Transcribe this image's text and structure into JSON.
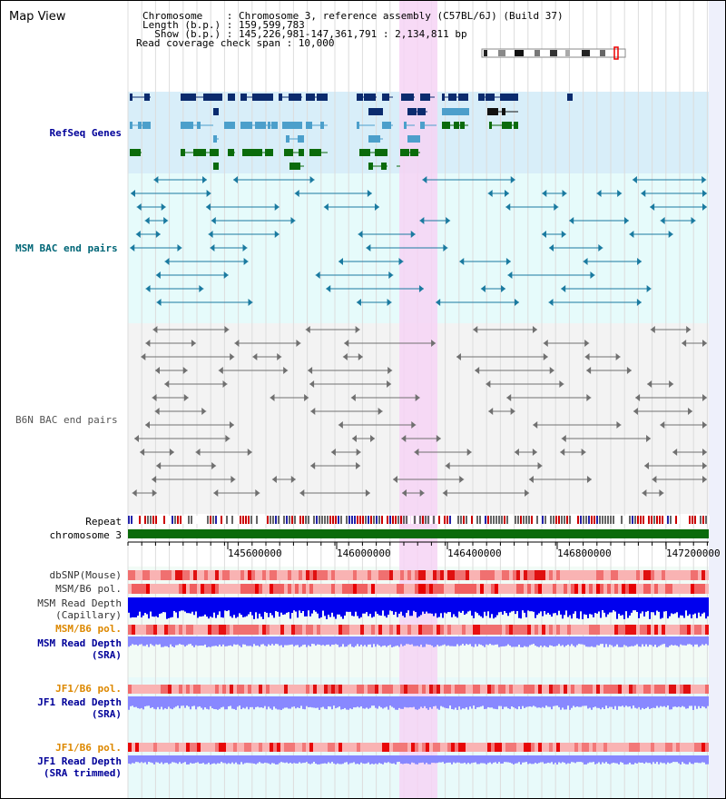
{
  "title": "Map View",
  "header": {
    "chromosome_line": "Chromosome    : Chromosome 3, reference assembly (C57BL/6J) (Build 37)",
    "length_line": "Length (b.p.) : 159,599,783",
    "show_line": "  Show (b.p.) : 145,226,981-147,361,791 : 2,134,811 bp",
    "coverage_line": "Read coverage check span : 10,000"
  },
  "tracks": {
    "refseq": "RefSeq Genes",
    "msm_bac": "MSM BAC end pairs",
    "b6n_bac": "B6N BAC end pairs",
    "repeat": "Repeat",
    "chromosome": "chromosome 3",
    "dbsnp": "dbSNP(Mouse)",
    "msm_pol1": "MSM/B6 pol.",
    "msm_depth_cap_1": "MSM Read Depth",
    "msm_depth_cap_2": "(Capillary)",
    "msm_pol2": "MSM/B6 pol.",
    "msm_depth_sra_1": "MSM Read Depth",
    "msm_depth_sra_2": "(SRA)",
    "jf1_pol1": "JF1/B6 pol.",
    "jf1_depth_sra_1": "JF1 Read Depth",
    "jf1_depth_sra_2": "(SRA)",
    "jf1_pol2": "JF1/B6 pol.",
    "jf1_depth_trim_1": "JF1 Read Depth",
    "jf1_depth_trim_2": "(SRA trimmed)"
  },
  "axis": {
    "ticks": [
      "145600000",
      "146000000",
      "146400000",
      "146800000",
      "147200000"
    ]
  },
  "colors": {
    "track_label_blue": "#000099",
    "msm_label": "#006677",
    "pol_label": "#dd8800",
    "refseq_bg": "#d8eef9",
    "msm_bg": "#e6fbfb",
    "b6n_bg": "#f3f3f3",
    "highlight": "#f6d4f4",
    "dark_gene": "#0b2b6e",
    "light_gene": "#4c9fcb",
    "green_gene": "#0b6b0b",
    "msm_bac": "#1a7aa0",
    "b6n_bac": "#707070",
    "depth_blue": "#0000ee",
    "depth_light": "#8888ff",
    "chrom_green": "#0b6b0b"
  }
}
